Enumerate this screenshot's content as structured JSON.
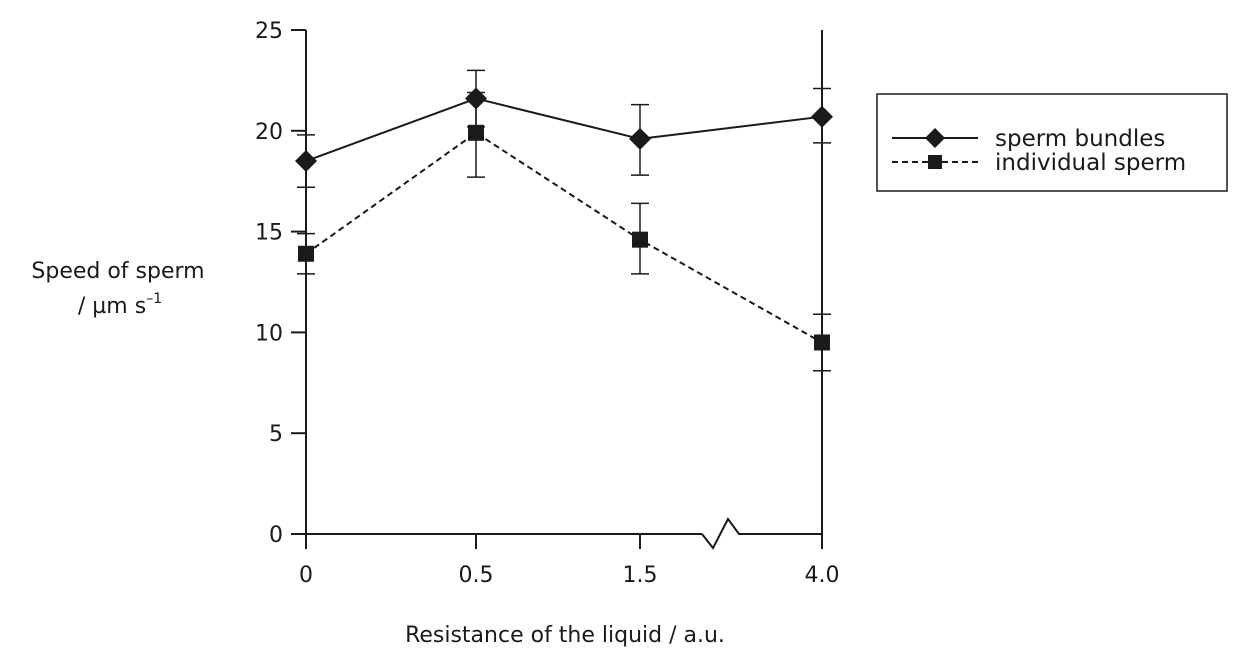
{
  "chart_data": {
    "type": "line",
    "categories": [
      "0",
      "0.5",
      "1.5",
      "4.0"
    ],
    "xlabel": "Resistance of the liquid  / a.u.",
    "ylabel_line1": "Speed of sperm",
    "ylabel_line2": "/ µm s",
    "ylabel_superscript": "–1",
    "ylim": [
      0,
      25
    ],
    "yticks": [
      0,
      5,
      10,
      15,
      20,
      25
    ],
    "axis_break": "between 1.5 and 4.0",
    "grid": false,
    "legend_position": "top-right",
    "series": [
      {
        "name": "sperm bundles",
        "marker": "diamond",
        "line_style": "solid",
        "values": [
          18.5,
          21.6,
          19.6,
          20.7
        ],
        "error_low": [
          17.2,
          20.2,
          17.8,
          19.4
        ],
        "error_high": [
          19.8,
          23.0,
          21.3,
          22.1
        ]
      },
      {
        "name": "individual sperm",
        "marker": "square",
        "line_style": "dashed",
        "values": [
          13.9,
          19.9,
          14.6,
          9.5
        ],
        "error_low": [
          12.9,
          17.7,
          12.9,
          8.1
        ],
        "error_high": [
          14.9,
          21.9,
          16.4,
          10.9
        ]
      }
    ]
  }
}
